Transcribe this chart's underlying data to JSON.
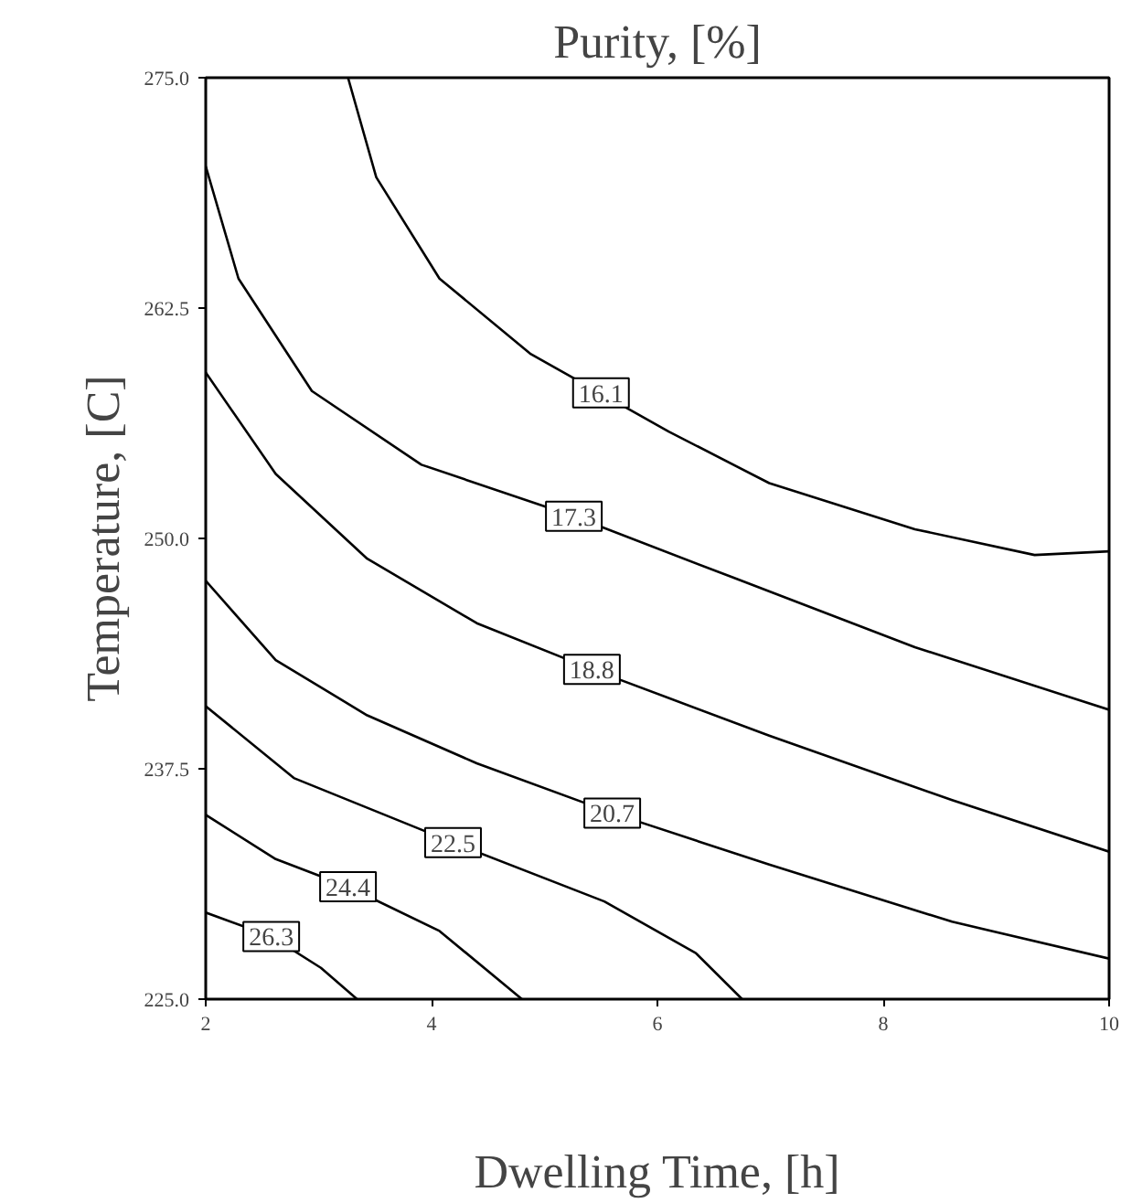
{
  "chart_data": {
    "type": "line",
    "title": "Purity, [%]",
    "xlabel": "Dwelling Time, [h]",
    "ylabel": "Temperature, [C]",
    "xlim": [
      2,
      10
    ],
    "ylim": [
      225,
      275
    ],
    "xticks": [
      2,
      4,
      6,
      8,
      10
    ],
    "yticks": [
      {
        "value": 225,
        "label": "225.0"
      },
      {
        "value": 237.5,
        "label": "237.5"
      },
      {
        "value": 250,
        "label": "250.0"
      },
      {
        "value": 262.5,
        "label": "262.5"
      },
      {
        "value": 275,
        "label": "275.0"
      }
    ],
    "grid": false,
    "marker": "none",
    "line_style": "solid",
    "series": [
      {
        "color": "#000000",
        "x": [
          3.26,
          3.51,
          4.07,
          4.88,
          6.1,
          6.99,
          8.28,
          9.34,
          10
        ],
        "values": [
          275.0,
          269.6,
          264.1,
          260.0,
          255.8,
          253.0,
          250.5,
          249.1,
          249.3
        ]
      },
      {
        "color": "#000000",
        "x": [
          2,
          2.29,
          2.94,
          3.91,
          5.26,
          6.66,
          8.28,
          10
        ],
        "values": [
          270.2,
          264.1,
          258.0,
          254.0,
          251.2,
          247.9,
          244.1,
          240.7
        ]
      },
      {
        "color": "#000000",
        "x": [
          2,
          2.62,
          3.43,
          4.4,
          5.42,
          6.99,
          8.61,
          10
        ],
        "values": [
          259.0,
          253.5,
          248.9,
          245.4,
          242.9,
          239.3,
          235.8,
          233.0
        ]
      },
      {
        "color": "#000000",
        "x": [
          2,
          2.62,
          3.43,
          4.4,
          5.6,
          6.99,
          8.61,
          10
        ],
        "values": [
          247.7,
          243.4,
          240.4,
          237.8,
          235.1,
          232.3,
          229.2,
          227.2
        ]
      },
      {
        "color": "#000000",
        "x": [
          2,
          2.78,
          4.19,
          5.53,
          6.34,
          6.75
        ],
        "values": [
          240.9,
          237.0,
          233.5,
          230.3,
          227.5,
          225.0
        ]
      },
      {
        "color": "#000000",
        "x": [
          2,
          2.62,
          3.26,
          4.07,
          4.8
        ],
        "values": [
          235.0,
          232.6,
          231.1,
          228.7,
          225.0
        ]
      },
      {
        "color": "#000000",
        "x": [
          2,
          2.58,
          3.02,
          3.34
        ],
        "values": [
          229.7,
          228.4,
          226.7,
          225.0
        ]
      }
    ],
    "annotations": [
      {
        "text": "16.1",
        "x": 5.5,
        "y": 257.9
      },
      {
        "text": "17.3",
        "x": 5.26,
        "y": 251.2
      },
      {
        "text": "18.8",
        "x": 5.42,
        "y": 242.9
      },
      {
        "text": "20.7",
        "x": 5.6,
        "y": 235.1
      },
      {
        "text": "22.5",
        "x": 4.19,
        "y": 233.5
      },
      {
        "text": "24.4",
        "x": 3.26,
        "y": 231.1
      },
      {
        "text": "26.3",
        "x": 2.58,
        "y": 228.4
      }
    ]
  }
}
